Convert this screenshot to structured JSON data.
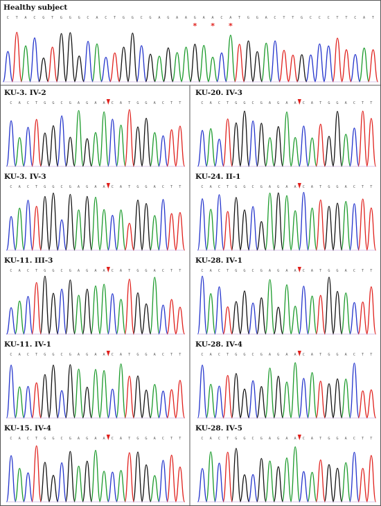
{
  "title": "",
  "reference": {
    "label": "Healthy subject",
    "sequence": "CTACGTGGGCACTGGCGAGAAGAACATGGACTTGCCCTTCAT",
    "marked_positions": [
      21,
      23,
      25
    ]
  },
  "patients": [
    {
      "label": "KU-3. IV-2",
      "sequence": "CACTGGCGAGAACATGGACTT",
      "deletion_after": 12
    },
    {
      "label": "KU-3. IV-3",
      "sequence": "CACTGGCGAGAACATGGACTT",
      "deletion_after": 12
    },
    {
      "label": "KU-11. III-3",
      "sequence": "CACTGGCGAGAACATGGACTT",
      "deletion_after": 12
    },
    {
      "label": "KU-11. IV-1",
      "sequence": "CACTGGCGAGAACATGGACTT",
      "deletion_after": 12
    },
    {
      "label": "KU-15. IV-4",
      "sequence": "CACTGGCGAGAACATGGACTT",
      "deletion_after": 12
    },
    {
      "label": "KU-20. IV-3",
      "sequence": "CACTGGCGAGAACATGGACTT",
      "deletion_after": 12
    },
    {
      "label": "KU-24. II-1",
      "sequence": "CACTGGCGAGAACATGGACTT",
      "deletion_after": 12
    },
    {
      "label": "KU-28. IV-1",
      "sequence": "CACTGGCGAGAACATGGACTT",
      "deletion_after": 12
    },
    {
      "label": "KU-28. IV-4",
      "sequence": "CACTGGCGAGAACATGGACTT",
      "deletion_after": 12
    },
    {
      "label": "KU-28. IV-5",
      "sequence": "CACTGGCGAGAACATGGACTT",
      "deletion_after": 12
    }
  ],
  "colors": {
    "A": "#1a9a2a",
    "C": "#2233cc",
    "G": "#111111",
    "T": "#e0201c",
    "border": "#555555",
    "marker": "#e0201c"
  }
}
